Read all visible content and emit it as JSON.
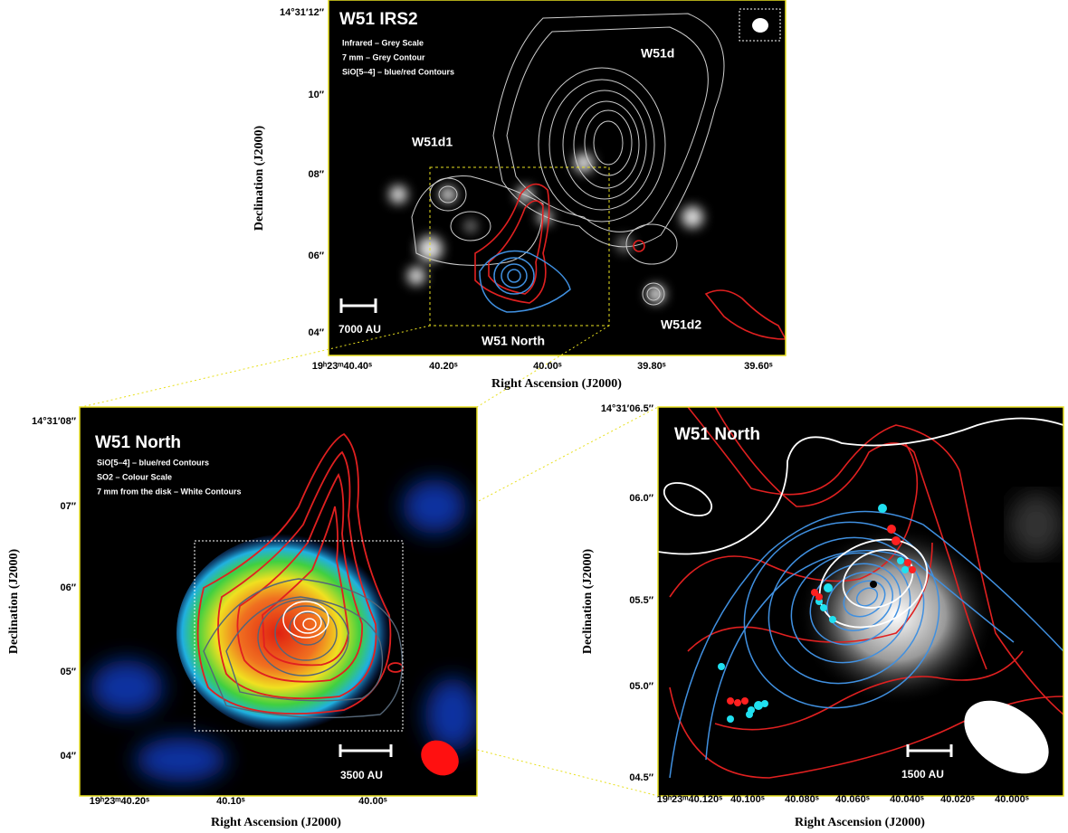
{
  "panels": [
    {
      "title": "W51 IRS2",
      "legend": [
        "Infrared – Grey Scale",
        "7 mm – Grey Contour",
        "SiO[5–4] – blue/red Contours"
      ],
      "labels": [
        "W51d",
        "W51d1",
        "W51d2",
        "W51 North"
      ],
      "scale_bar": "7000 AU",
      "y_ticks": [
        "14°31′12″",
        "10″",
        "08″",
        "06″",
        "04″"
      ],
      "x_ticks": [
        "19ʰ23ᵐ40.40ˢ",
        "40.20ˢ",
        "40.00ˢ",
        "39.80ˢ",
        "39.60ˢ"
      ],
      "x_label": "Right Ascension (J2000)",
      "y_label": "Declination (J2000)"
    },
    {
      "title": "W51 North",
      "legend": [
        "SiO[5–4] – blue/red Contours",
        "SO2 – Colour Scale",
        "7 mm from the disk – White Contours"
      ],
      "labels": [],
      "scale_bar": "3500 AU",
      "y_ticks": [
        "14°31′08″",
        "07″",
        "06″",
        "05″",
        "04″"
      ],
      "x_ticks": [
        "19ʰ23ᵐ40.20ˢ",
        "40.10ˢ",
        "40.00ˢ"
      ],
      "x_label": "Right Ascension (J2000)",
      "y_label": "Declination (J2000)"
    },
    {
      "title": "W51 North",
      "legend": [],
      "labels": [],
      "scale_bar": "1500 AU",
      "y_ticks": [
        "14°31′06.5″",
        "06.0″",
        "05.5″",
        "05.0″",
        "04.5″"
      ],
      "x_ticks": [
        "19ʰ23ᵐ40.120ˢ",
        "40.100ˢ",
        "40.080ˢ",
        "40.060ˢ",
        "40.040ˢ",
        "40.020ˢ",
        "40.000ˢ"
      ],
      "x_label": "Right Ascension (J2000)",
      "y_label": "Declination (J2000)"
    }
  ]
}
